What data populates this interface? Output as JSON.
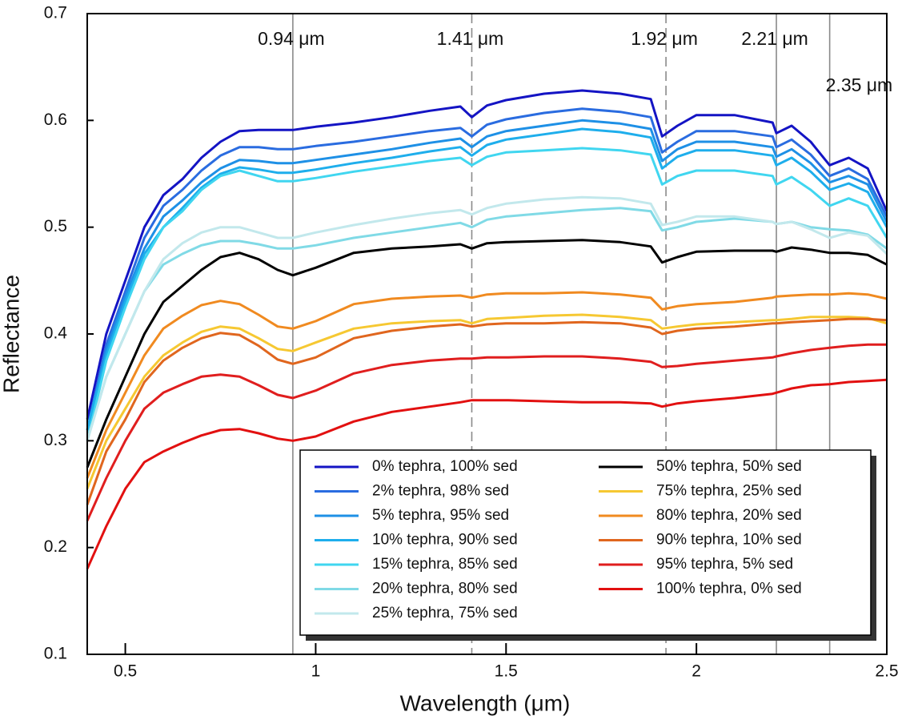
{
  "chart_data": {
    "type": "line",
    "x_label": "Wavelength (μm)",
    "y_label": "Reflectance",
    "xlim": [
      0.4,
      2.5
    ],
    "ylim": [
      0.1,
      0.7
    ],
    "xticks": [
      0.5,
      1,
      1.5,
      2,
      2.5
    ],
    "yticks": [
      0.1,
      0.2,
      0.3,
      0.4,
      0.5,
      0.6,
      0.7
    ],
    "annotations": [
      {
        "value": 0.94,
        "label": "0.94 μm",
        "style": "solid"
      },
      {
        "value": 1.41,
        "label": "1.41 μm",
        "style": "dashed"
      },
      {
        "value": 1.92,
        "label": "1.92 μm",
        "style": "dashed"
      },
      {
        "value": 2.21,
        "label": "2.21 μm",
        "style": "solid"
      },
      {
        "value": 2.35,
        "label": "2.35 μm",
        "style": "solid"
      }
    ],
    "x": [
      0.4,
      0.45,
      0.5,
      0.55,
      0.6,
      0.65,
      0.7,
      0.75,
      0.8,
      0.85,
      0.9,
      0.94,
      1.0,
      1.1,
      1.2,
      1.3,
      1.38,
      1.41,
      1.45,
      1.5,
      1.6,
      1.7,
      1.8,
      1.88,
      1.91,
      1.95,
      2.0,
      2.1,
      2.2,
      2.21,
      2.25,
      2.3,
      2.35,
      2.4,
      2.45,
      2.5
    ],
    "series": [
      {
        "name": "0% tephra, 100% sed",
        "color": "#1414c4",
        "values": [
          0.32,
          0.4,
          0.45,
          0.5,
          0.53,
          0.545,
          0.565,
          0.58,
          0.59,
          0.591,
          0.591,
          0.591,
          0.594,
          0.598,
          0.603,
          0.609,
          0.613,
          0.603,
          0.614,
          0.619,
          0.625,
          0.628,
          0.625,
          0.62,
          0.585,
          0.595,
          0.605,
          0.605,
          0.598,
          0.588,
          0.595,
          0.58,
          0.558,
          0.565,
          0.555,
          0.515
        ]
      },
      {
        "name": "2% tephra, 98% sed",
        "color": "#2a6ce0",
        "values": [
          0.31,
          0.39,
          0.44,
          0.49,
          0.52,
          0.535,
          0.553,
          0.567,
          0.575,
          0.575,
          0.573,
          0.573,
          0.576,
          0.58,
          0.585,
          0.59,
          0.593,
          0.585,
          0.596,
          0.601,
          0.607,
          0.611,
          0.608,
          0.603,
          0.57,
          0.58,
          0.59,
          0.59,
          0.585,
          0.575,
          0.582,
          0.568,
          0.548,
          0.555,
          0.545,
          0.51
        ]
      },
      {
        "name": "5% tephra, 95% sed",
        "color": "#1e90e6",
        "values": [
          0.31,
          0.385,
          0.435,
          0.48,
          0.51,
          0.525,
          0.542,
          0.555,
          0.563,
          0.562,
          0.56,
          0.56,
          0.563,
          0.568,
          0.573,
          0.579,
          0.583,
          0.575,
          0.585,
          0.59,
          0.595,
          0.6,
          0.597,
          0.592,
          0.562,
          0.573,
          0.58,
          0.58,
          0.575,
          0.566,
          0.573,
          0.56,
          0.542,
          0.548,
          0.54,
          0.505
        ]
      },
      {
        "name": "10% tephra, 90% sed",
        "color": "#1eaeec",
        "values": [
          0.31,
          0.38,
          0.43,
          0.475,
          0.5,
          0.518,
          0.537,
          0.55,
          0.556,
          0.554,
          0.551,
          0.551,
          0.554,
          0.56,
          0.565,
          0.571,
          0.575,
          0.567,
          0.577,
          0.582,
          0.587,
          0.592,
          0.589,
          0.584,
          0.555,
          0.566,
          0.572,
          0.572,
          0.567,
          0.558,
          0.565,
          0.552,
          0.535,
          0.541,
          0.533,
          0.5
        ]
      },
      {
        "name": "15% tephra, 85% sed",
        "color": "#40d6f0",
        "values": [
          0.3,
          0.375,
          0.425,
          0.47,
          0.5,
          0.515,
          0.535,
          0.548,
          0.553,
          0.548,
          0.543,
          0.543,
          0.546,
          0.552,
          0.557,
          0.562,
          0.565,
          0.558,
          0.566,
          0.57,
          0.572,
          0.574,
          0.572,
          0.568,
          0.54,
          0.548,
          0.553,
          0.553,
          0.548,
          0.54,
          0.547,
          0.535,
          0.52,
          0.527,
          0.52,
          0.49
        ]
      },
      {
        "name": "20% tephra, 80% sed",
        "color": "#80dae6",
        "values": [
          0.3,
          0.36,
          0.4,
          0.44,
          0.465,
          0.475,
          0.483,
          0.487,
          0.487,
          0.484,
          0.48,
          0.48,
          0.483,
          0.49,
          0.495,
          0.5,
          0.504,
          0.5,
          0.507,
          0.51,
          0.513,
          0.516,
          0.518,
          0.515,
          0.497,
          0.5,
          0.505,
          0.508,
          0.505,
          0.503,
          0.505,
          0.5,
          0.498,
          0.497,
          0.493,
          0.48
        ]
      },
      {
        "name": "25% tephra, 75% sed",
        "color": "#c2e8ec",
        "values": [
          0.3,
          0.36,
          0.4,
          0.44,
          0.47,
          0.485,
          0.495,
          0.5,
          0.5,
          0.495,
          0.49,
          0.49,
          0.495,
          0.502,
          0.508,
          0.513,
          0.516,
          0.512,
          0.518,
          0.522,
          0.526,
          0.528,
          0.527,
          0.522,
          0.502,
          0.505,
          0.51,
          0.51,
          0.505,
          0.503,
          0.505,
          0.498,
          0.49,
          0.495,
          0.492,
          0.475
        ]
      },
      {
        "name": "50% tephra, 50% sed",
        "color": "#000000",
        "values": [
          0.275,
          0.32,
          0.36,
          0.4,
          0.43,
          0.445,
          0.46,
          0.472,
          0.476,
          0.47,
          0.46,
          0.455,
          0.462,
          0.476,
          0.48,
          0.482,
          0.484,
          0.48,
          0.485,
          0.486,
          0.487,
          0.488,
          0.486,
          0.482,
          0.467,
          0.472,
          0.477,
          0.478,
          0.478,
          0.477,
          0.481,
          0.479,
          0.476,
          0.476,
          0.474,
          0.465
        ]
      },
      {
        "name": "75% tephra, 25% sed",
        "color": "#f6c832",
        "values": [
          0.255,
          0.3,
          0.33,
          0.36,
          0.38,
          0.392,
          0.402,
          0.407,
          0.405,
          0.396,
          0.386,
          0.384,
          0.392,
          0.405,
          0.41,
          0.412,
          0.413,
          0.41,
          0.414,
          0.415,
          0.417,
          0.418,
          0.416,
          0.413,
          0.405,
          0.407,
          0.409,
          0.411,
          0.413,
          0.413,
          0.414,
          0.416,
          0.416,
          0.416,
          0.415,
          0.41
        ]
      },
      {
        "name": "80% tephra, 20% sed",
        "color": "#f08a20",
        "values": [
          0.265,
          0.31,
          0.345,
          0.38,
          0.405,
          0.417,
          0.427,
          0.431,
          0.428,
          0.418,
          0.407,
          0.405,
          0.412,
          0.428,
          0.433,
          0.435,
          0.436,
          0.434,
          0.437,
          0.438,
          0.438,
          0.439,
          0.437,
          0.434,
          0.423,
          0.426,
          0.428,
          0.43,
          0.434,
          0.435,
          0.436,
          0.437,
          0.437,
          0.438,
          0.437,
          0.433
        ]
      },
      {
        "name": "90% tephra, 10% sed",
        "color": "#e0661e",
        "values": [
          0.24,
          0.29,
          0.32,
          0.355,
          0.375,
          0.387,
          0.396,
          0.401,
          0.399,
          0.389,
          0.376,
          0.372,
          0.378,
          0.396,
          0.403,
          0.407,
          0.409,
          0.407,
          0.409,
          0.41,
          0.41,
          0.411,
          0.41,
          0.406,
          0.4,
          0.403,
          0.405,
          0.407,
          0.41,
          0.41,
          0.411,
          0.412,
          0.413,
          0.414,
          0.414,
          0.413
        ]
      },
      {
        "name": "95% tephra, 5% sed",
        "color": "#e01e1e",
        "values": [
          0.225,
          0.265,
          0.3,
          0.33,
          0.345,
          0.353,
          0.36,
          0.362,
          0.36,
          0.352,
          0.343,
          0.34,
          0.347,
          0.363,
          0.371,
          0.375,
          0.377,
          0.377,
          0.378,
          0.378,
          0.379,
          0.379,
          0.377,
          0.374,
          0.369,
          0.37,
          0.372,
          0.375,
          0.378,
          0.379,
          0.382,
          0.385,
          0.387,
          0.389,
          0.39,
          0.39
        ]
      },
      {
        "name": "100% tephra, 0% sed",
        "color": "#e21010",
        "values": [
          0.18,
          0.22,
          0.255,
          0.28,
          0.29,
          0.298,
          0.305,
          0.31,
          0.311,
          0.307,
          0.302,
          0.3,
          0.304,
          0.318,
          0.327,
          0.332,
          0.336,
          0.338,
          0.338,
          0.338,
          0.337,
          0.336,
          0.336,
          0.335,
          0.332,
          0.335,
          0.337,
          0.34,
          0.344,
          0.345,
          0.349,
          0.352,
          0.353,
          0.355,
          0.356,
          0.357
        ]
      }
    ]
  }
}
